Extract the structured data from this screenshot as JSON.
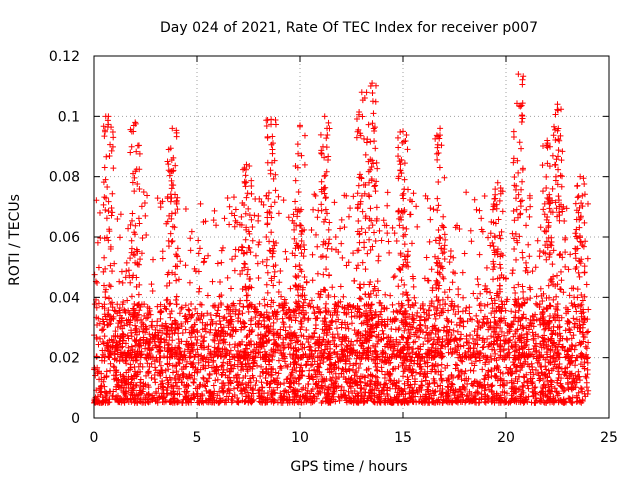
{
  "chart_data": {
    "type": "scatter",
    "title": "Day 024 of 2021, Rate Of TEC Index for receiver p007",
    "xlabel": "GPS time / hours",
    "ylabel": "ROTI / TECUs",
    "xlim": [
      0,
      25
    ],
    "ylim": [
      0,
      0.12
    ],
    "x_ticks": [
      0,
      5,
      10,
      15,
      20,
      25
    ],
    "x_tick_labels": [
      "0",
      "5",
      "10",
      "15",
      "20",
      "25"
    ],
    "y_ticks": [
      0,
      0.02,
      0.04,
      0.06,
      0.08,
      0.1,
      0.12
    ],
    "y_tick_labels": [
      "0",
      "0.02",
      "0.04",
      "0.06",
      "0.08",
      "0.1",
      "0.12"
    ],
    "grid": true,
    "marker": "plus",
    "color": "#ff0000",
    "series": [
      {
        "name": "ROTI",
        "x_range": [
          0,
          24
        ],
        "typical_range": [
          0.005,
          0.035
        ],
        "notable_peaks": [
          {
            "x": 0.7,
            "y": 0.1
          },
          {
            "x": 2.0,
            "y": 0.098
          },
          {
            "x": 3.8,
            "y": 0.096
          },
          {
            "x": 7.4,
            "y": 0.084
          },
          {
            "x": 8.6,
            "y": 0.099
          },
          {
            "x": 10.0,
            "y": 0.097
          },
          {
            "x": 11.2,
            "y": 0.1
          },
          {
            "x": 13.0,
            "y": 0.108
          },
          {
            "x": 13.5,
            "y": 0.111
          },
          {
            "x": 15.0,
            "y": 0.095
          },
          {
            "x": 16.8,
            "y": 0.096
          },
          {
            "x": 19.6,
            "y": 0.078
          },
          {
            "x": 20.6,
            "y": 0.114
          },
          {
            "x": 22.0,
            "y": 0.092
          },
          {
            "x": 22.5,
            "y": 0.104
          },
          {
            "x": 23.6,
            "y": 0.08
          }
        ]
      }
    ]
  }
}
